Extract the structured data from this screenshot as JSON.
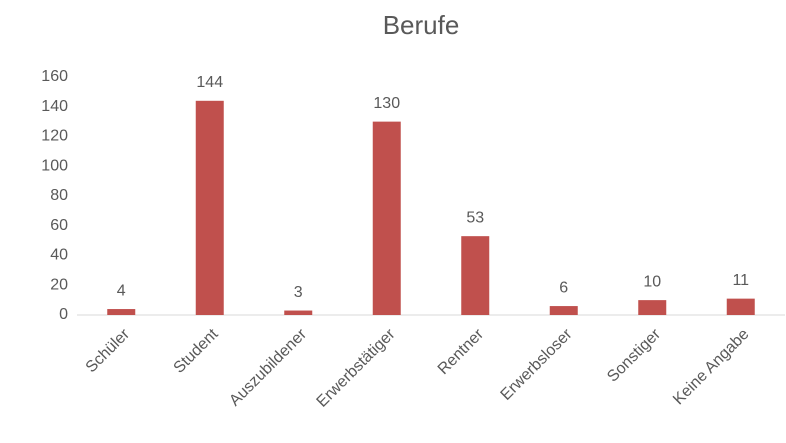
{
  "chart_data": {
    "type": "bar",
    "title": "Berufe",
    "categories": [
      "Schüler",
      "Student",
      "Auszubildener",
      "Erwerbstätiger",
      "Rentner",
      "Erwerbsloser",
      "Sonstiger",
      "Keine Angabe"
    ],
    "values": [
      4,
      144,
      3,
      130,
      53,
      6,
      10,
      11
    ],
    "color": "#c0504d",
    "ylim": [
      0,
      160
    ],
    "yticks": [
      0,
      20,
      40,
      60,
      80,
      100,
      120,
      140,
      160
    ],
    "grid": false
  }
}
